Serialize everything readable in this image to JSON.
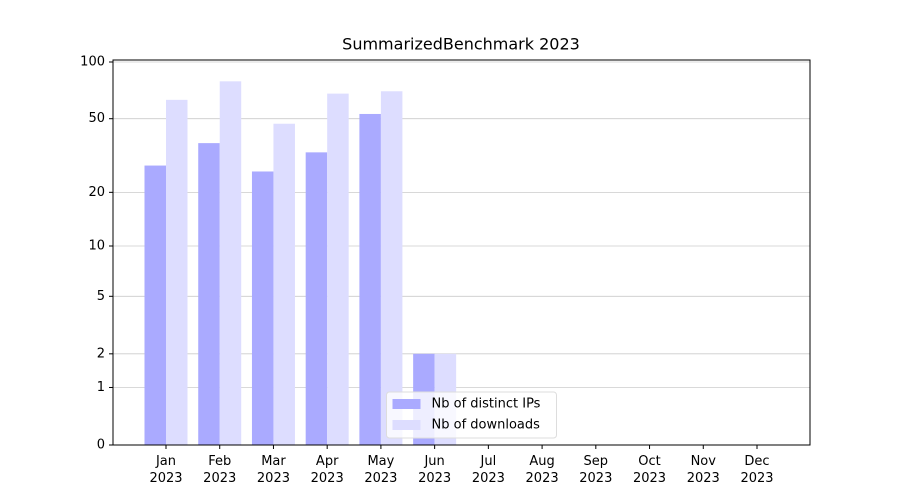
{
  "chart_data": {
    "type": "bar",
    "title": "SummarizedBenchmark 2023",
    "categories": [
      "Jan 2023",
      "Feb 2023",
      "Mar 2023",
      "Apr 2023",
      "May 2023",
      "Jun 2023",
      "Jul 2023",
      "Aug 2023",
      "Sep 2023",
      "Oct 2023",
      "Nov 2023",
      "Dec 2023"
    ],
    "series": [
      {
        "name": "Nb of distinct IPs",
        "color": "#aaaaff",
        "values": [
          28,
          37,
          26,
          33,
          53,
          2,
          0,
          0,
          0,
          0,
          0,
          0
        ]
      },
      {
        "name": "Nb of downloads",
        "color": "#ddddff",
        "values": [
          63,
          79,
          47,
          68,
          70,
          2,
          0,
          0,
          0,
          0,
          0,
          0
        ]
      }
    ],
    "yscale": "log1p",
    "ylim": [
      0,
      100
    ],
    "yticks": [
      0,
      1,
      2,
      5,
      10,
      20,
      50,
      100
    ],
    "grid": true,
    "legend": "lower center"
  }
}
